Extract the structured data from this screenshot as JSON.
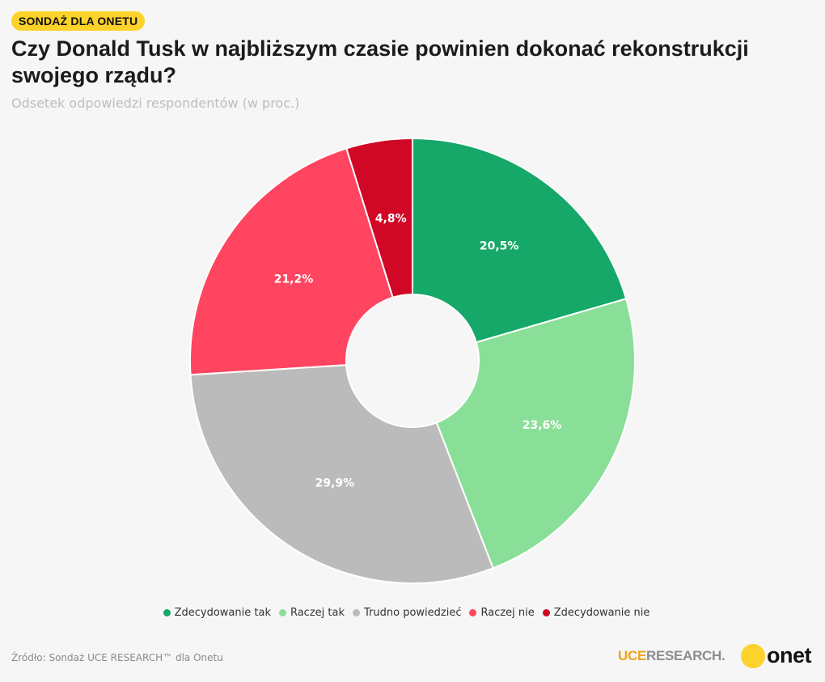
{
  "badge": "SONDAŻ DLA ONETU",
  "title": "Czy Donald Tusk w najbliższym czasie powinien dokonać rekonstrukcji swojego rządu?",
  "subtitle": "Odsetek odpowiedzi respondentów (w proc.)",
  "source": "Źródło: Sondaż UCE RESEARCH™ dla Onetu",
  "logos": {
    "uce_part1": "UCE",
    "uce_part2": "RESEARCH.",
    "onet": "onet"
  },
  "colors": {
    "badge": "#fdd22a",
    "background": "#f6f6f6"
  },
  "chart_data": {
    "type": "pie",
    "donut": true,
    "title": "Czy Donald Tusk w najbliższym czasie powinien dokonać rekonstrukcji swojego rządu?",
    "subtitle": "Odsetek odpowiedzi respondentów (w proc.)",
    "legend_position": "bottom",
    "slices": [
      {
        "label": "Zdecydowanie tak",
        "value": 20.5,
        "display": "20,5%",
        "color": "#15a868"
      },
      {
        "label": "Raczej tak",
        "value": 23.6,
        "display": "23,6%",
        "color": "#8adf98"
      },
      {
        "label": "Trudno powiedzieć",
        "value": 29.9,
        "display": "29,9%",
        "color": "#bbbbbb"
      },
      {
        "label": "Raczej nie",
        "value": 21.2,
        "display": "21,2%",
        "color": "#ff4560"
      },
      {
        "label": "Zdecydowanie nie",
        "value": 4.8,
        "display": "4,8%",
        "color": "#d00725"
      }
    ]
  }
}
